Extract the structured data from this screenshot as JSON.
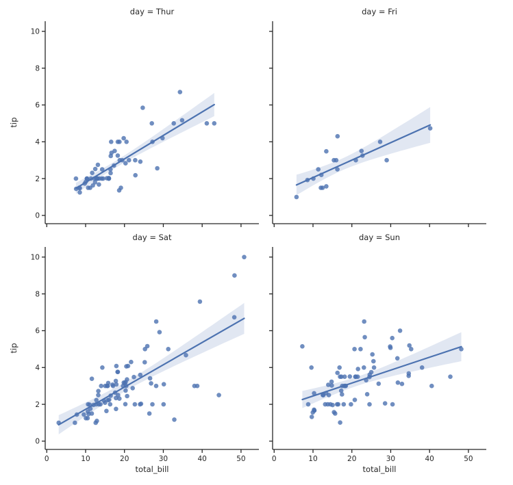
{
  "chart_data": {
    "type": "scatter",
    "facet_by": "day",
    "xlabel": "total_bill",
    "ylabel": "tip",
    "x_ticks": [
      0,
      10,
      20,
      30,
      40,
      50
    ],
    "y_ticks": [
      0,
      2,
      4,
      6,
      8,
      10
    ],
    "xlim": [
      -0.4,
      54.6
    ],
    "ylim": [
      -0.45,
      10.55
    ],
    "grid": false,
    "legend": "none",
    "regression": {
      "kind": "linear-ols",
      "ci_percent": 95,
      "truncate_to_data": true
    },
    "marker": {
      "radius_px": 3.3,
      "opacity": 0.8
    },
    "colors": {
      "marker": "#4c72b0",
      "line": "#4c72b0",
      "band": "#4c72b0",
      "band_opacity": 0.17,
      "axis": "#262626",
      "text": "#262626",
      "background": "#ffffff"
    },
    "facets": [
      {
        "day": "Thur",
        "title": "day = Thur",
        "points": [
          [
            27.2,
            4.0
          ],
          [
            22.76,
            3.0
          ],
          [
            17.29,
            2.71
          ],
          [
            19.44,
            3.0
          ],
          [
            16.66,
            3.4
          ],
          [
            10.07,
            1.83
          ],
          [
            32.68,
            5.0
          ],
          [
            15.98,
            2.03
          ],
          [
            34.83,
            5.17
          ],
          [
            13.03,
            2.0
          ],
          [
            18.28,
            4.0
          ],
          [
            24.71,
            5.85
          ],
          [
            21.16,
            3.0
          ],
          [
            10.65,
            1.5
          ],
          [
            12.43,
            1.8
          ],
          [
            24.08,
            2.92
          ],
          [
            11.69,
            2.31
          ],
          [
            13.42,
            1.68
          ],
          [
            14.26,
            2.5
          ],
          [
            15.95,
            2.0
          ],
          [
            12.48,
            2.52
          ],
          [
            29.8,
            4.2
          ],
          [
            8.52,
            1.48
          ],
          [
            14.52,
            2.0
          ],
          [
            11.38,
            2.0
          ],
          [
            22.82,
            2.18
          ],
          [
            19.08,
            1.5
          ],
          [
            20.27,
            2.83
          ],
          [
            11.17,
            1.5
          ],
          [
            12.26,
            2.0
          ],
          [
            18.26,
            3.25
          ],
          [
            8.51,
            1.25
          ],
          [
            10.33,
            2.0
          ],
          [
            14.15,
            2.0
          ],
          [
            16.0,
            2.0
          ],
          [
            13.16,
            2.75
          ],
          [
            17.47,
            3.5
          ],
          [
            34.3,
            6.7
          ],
          [
            41.19,
            5.0
          ],
          [
            27.05,
            5.0
          ],
          [
            16.43,
            2.3
          ],
          [
            8.35,
            1.5
          ],
          [
            18.64,
            1.36
          ],
          [
            11.87,
            1.63
          ],
          [
            9.78,
            1.73
          ],
          [
            7.51,
            2.0
          ],
          [
            19.81,
            4.19
          ],
          [
            28.44,
            2.56
          ],
          [
            15.48,
            2.02
          ],
          [
            16.58,
            4.0
          ],
          [
            7.56,
            1.44
          ],
          [
            10.34,
            2.0
          ],
          [
            43.11,
            5.0
          ],
          [
            13.0,
            2.0
          ],
          [
            13.51,
            2.0
          ],
          [
            18.71,
            4.0
          ],
          [
            12.74,
            2.01
          ],
          [
            13.0,
            2.0
          ],
          [
            16.4,
            2.5
          ],
          [
            20.53,
            4.0
          ],
          [
            16.47,
            3.23
          ],
          [
            18.78,
            3.0
          ]
        ]
      },
      {
        "day": "Fri",
        "title": "day = Fri",
        "points": [
          [
            28.97,
            3.0
          ],
          [
            22.49,
            3.5
          ],
          [
            5.75,
            1.0
          ],
          [
            16.32,
            4.3
          ],
          [
            22.75,
            3.25
          ],
          [
            40.17,
            4.73
          ],
          [
            27.28,
            4.0
          ],
          [
            12.03,
            1.5
          ],
          [
            21.01,
            3.0
          ],
          [
            12.46,
            1.5
          ],
          [
            11.35,
            2.5
          ],
          [
            15.38,
            3.0
          ],
          [
            12.16,
            2.2
          ],
          [
            13.42,
            3.48
          ],
          [
            8.58,
            1.92
          ],
          [
            15.98,
            3.0
          ],
          [
            13.42,
            1.58
          ],
          [
            16.27,
            2.5
          ],
          [
            10.09,
            2.0
          ]
        ]
      },
      {
        "day": "Sat",
        "title": "day = Sat",
        "points": [
          [
            20.65,
            3.35
          ],
          [
            17.92,
            4.08
          ],
          [
            20.29,
            2.75
          ],
          [
            15.77,
            2.23
          ],
          [
            39.42,
            7.58
          ],
          [
            19.82,
            3.18
          ],
          [
            17.81,
            2.34
          ],
          [
            13.37,
            2.0
          ],
          [
            12.69,
            2.0
          ],
          [
            21.7,
            4.3
          ],
          [
            19.65,
            3.0
          ],
          [
            9.55,
            1.45
          ],
          [
            18.35,
            2.5
          ],
          [
            15.06,
            3.0
          ],
          [
            20.69,
            2.45
          ],
          [
            17.78,
            3.27
          ],
          [
            24.06,
            3.6
          ],
          [
            16.31,
            2.0
          ],
          [
            16.93,
            3.07
          ],
          [
            18.69,
            2.31
          ],
          [
            31.27,
            5.0
          ],
          [
            16.04,
            2.24
          ],
          [
            38.01,
            3.0
          ],
          [
            26.41,
            1.5
          ],
          [
            11.24,
            1.76
          ],
          [
            48.27,
            6.73
          ],
          [
            20.29,
            3.21
          ],
          [
            13.81,
            2.0
          ],
          [
            11.02,
            1.98
          ],
          [
            18.29,
            3.76
          ],
          [
            17.59,
            2.64
          ],
          [
            20.08,
            3.15
          ],
          [
            16.45,
            2.47
          ],
          [
            3.07,
            1.0
          ],
          [
            20.23,
            2.01
          ],
          [
            15.01,
            2.09
          ],
          [
            12.02,
            1.97
          ],
          [
            17.07,
            3.0
          ],
          [
            26.86,
            3.14
          ],
          [
            25.28,
            5.0
          ],
          [
            14.73,
            2.2
          ],
          [
            10.51,
            1.25
          ],
          [
            17.92,
            3.08
          ],
          [
            44.3,
            2.5
          ],
          [
            22.42,
            3.48
          ],
          [
            20.92,
            4.08
          ],
          [
            15.36,
            1.64
          ],
          [
            20.49,
            4.06
          ],
          [
            25.21,
            4.29
          ],
          [
            18.24,
            3.76
          ],
          [
            14.31,
            4.0
          ],
          [
            14.0,
            3.0
          ],
          [
            7.25,
            1.0
          ],
          [
            10.59,
            1.61
          ],
          [
            10.63,
            2.0
          ],
          [
            50.81,
            10.0
          ],
          [
            15.81,
            3.16
          ],
          [
            26.59,
            3.41
          ],
          [
            38.73,
            3.0
          ],
          [
            24.27,
            2.03
          ],
          [
            12.76,
            2.23
          ],
          [
            30.06,
            2.0
          ],
          [
            25.89,
            5.16
          ],
          [
            48.33,
            9.0
          ],
          [
            13.27,
            2.5
          ],
          [
            28.17,
            6.5
          ],
          [
            12.9,
            1.1
          ],
          [
            28.15,
            3.0
          ],
          [
            11.59,
            1.5
          ],
          [
            7.74,
            1.44
          ],
          [
            30.14,
            3.09
          ],
          [
            20.45,
            3.0
          ],
          [
            13.28,
            2.72
          ],
          [
            22.12,
            2.88
          ],
          [
            24.01,
            2.0
          ],
          [
            15.69,
            3.0
          ],
          [
            11.61,
            3.39
          ],
          [
            10.77,
            1.47
          ],
          [
            15.53,
            3.0
          ],
          [
            10.07,
            1.25
          ],
          [
            12.6,
            1.0
          ],
          [
            32.83,
            1.17
          ],
          [
            35.83,
            4.67
          ],
          [
            29.03,
            5.92
          ],
          [
            27.18,
            2.0
          ],
          [
            22.67,
            2.0
          ],
          [
            17.82,
            1.75
          ]
        ]
      },
      {
        "day": "Sun",
        "title": "day = Sun",
        "points": [
          [
            16.99,
            1.01
          ],
          [
            10.34,
            1.66
          ],
          [
            21.01,
            3.5
          ],
          [
            23.68,
            3.31
          ],
          [
            24.59,
            3.61
          ],
          [
            25.29,
            4.71
          ],
          [
            8.77,
            2.0
          ],
          [
            26.88,
            3.12
          ],
          [
            15.04,
            1.96
          ],
          [
            14.78,
            3.23
          ],
          [
            10.27,
            1.71
          ],
          [
            35.26,
            5.0
          ],
          [
            15.42,
            1.57
          ],
          [
            18.43,
            3.0
          ],
          [
            14.83,
            3.02
          ],
          [
            21.58,
            3.92
          ],
          [
            10.33,
            1.67
          ],
          [
            16.29,
            3.71
          ],
          [
            16.97,
            3.5
          ],
          [
            17.46,
            2.54
          ],
          [
            13.94,
            3.06
          ],
          [
            9.68,
            1.32
          ],
          [
            30.4,
            5.6
          ],
          [
            18.29,
            3.0
          ],
          [
            22.23,
            5.0
          ],
          [
            32.4,
            6.0
          ],
          [
            28.55,
            2.05
          ],
          [
            18.04,
            3.0
          ],
          [
            12.54,
            2.5
          ],
          [
            10.29,
            2.6
          ],
          [
            34.81,
            5.2
          ],
          [
            9.94,
            1.56
          ],
          [
            25.56,
            4.34
          ],
          [
            19.49,
            3.51
          ],
          [
            38.07,
            4.0
          ],
          [
            23.95,
            2.55
          ],
          [
            25.71,
            4.0
          ],
          [
            17.31,
            3.5
          ],
          [
            29.93,
            5.07
          ],
          [
            14.07,
            2.5
          ],
          [
            13.13,
            2.0
          ],
          [
            17.26,
            2.74
          ],
          [
            24.55,
            2.0
          ],
          [
            19.77,
            2.0
          ],
          [
            29.85,
            5.14
          ],
          [
            48.17,
            5.0
          ],
          [
            25.0,
            3.75
          ],
          [
            13.39,
            2.61
          ],
          [
            16.49,
            2.0
          ],
          [
            21.5,
            3.5
          ],
          [
            12.66,
            2.5
          ],
          [
            16.21,
            2.0
          ],
          [
            13.81,
            2.0
          ],
          [
            17.51,
            3.0
          ],
          [
            24.52,
            3.48
          ],
          [
            20.76,
            2.24
          ],
          [
            31.71,
            4.5
          ],
          [
            7.25,
            5.15
          ],
          [
            31.85,
            3.18
          ],
          [
            16.82,
            4.0
          ],
          [
            32.9,
            3.11
          ],
          [
            17.89,
            2.0
          ],
          [
            14.48,
            2.0
          ],
          [
            9.6,
            4.0
          ],
          [
            34.63,
            3.55
          ],
          [
            34.65,
            3.68
          ],
          [
            23.33,
            5.65
          ],
          [
            45.35,
            3.5
          ],
          [
            23.17,
            6.5
          ],
          [
            40.55,
            3.0
          ],
          [
            20.69,
            5.0
          ],
          [
            20.9,
            3.5
          ],
          [
            30.46,
            2.0
          ],
          [
            18.15,
            3.5
          ],
          [
            23.1,
            4.0
          ],
          [
            15.69,
            1.5
          ]
        ]
      }
    ]
  }
}
